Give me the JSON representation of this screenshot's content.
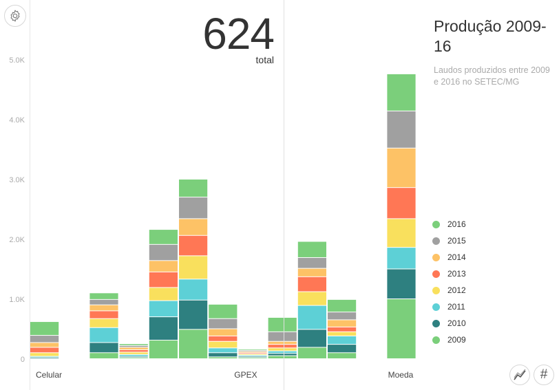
{
  "total": {
    "value": "624",
    "label": "total"
  },
  "title": "Produção 2009-16",
  "subtitle": "Laudos produzidos entre 2009 e 2016 no SETEC/MG",
  "controls": {
    "settings_icon": "gear-icon",
    "line_icon": "line-chart-icon",
    "number_icon": "hash-icon",
    "number_label": "#"
  },
  "chart_data": {
    "type": "bar",
    "stacked": true,
    "grid": false,
    "legend_position": "right",
    "ylim": [
      0,
      5000
    ],
    "y_ticks": [
      {
        "value": 0,
        "label": "0"
      },
      {
        "value": 1000,
        "label": "1.0K"
      },
      {
        "value": 2000,
        "label": "2.0K"
      },
      {
        "value": 3000,
        "label": "3.0K"
      },
      {
        "value": 4000,
        "label": "4.0K"
      },
      {
        "value": 5000,
        "label": "5.0K"
      }
    ],
    "categories": [
      "Celular",
      "",
      "",
      "",
      "",
      "",
      "",
      "GPEX",
      "",
      "",
      "Moeda"
    ],
    "category_slots": [
      0,
      2,
      3,
      4,
      5,
      6,
      7,
      8,
      9,
      10,
      12
    ],
    "group_labels": [
      {
        "label": "Celular",
        "align_slot": 0,
        "anchor": "start"
      },
      {
        "label": "GPEX",
        "align_slot": 7,
        "anchor": "end"
      },
      {
        "label": "Moeda",
        "align_slot": 12,
        "anchor": "middle"
      }
    ],
    "legend_order": [
      "2016",
      "2015",
      "2014",
      "2013",
      "2012",
      "2011",
      "2010",
      "2009"
    ],
    "series": [
      {
        "name": "2009",
        "color": "#7bcf7b",
        "values": [
          0,
          100,
          20,
          310,
          490,
          30,
          20,
          50,
          190,
          100,
          1000
        ]
      },
      {
        "name": "2010",
        "color": "#2e8080",
        "values": [
          20,
          170,
          20,
          390,
          490,
          70,
          20,
          40,
          300,
          140,
          500
        ]
      },
      {
        "name": "2011",
        "color": "#5dd0d6",
        "values": [
          20,
          250,
          30,
          270,
          350,
          80,
          20,
          40,
          400,
          140,
          360
        ]
      },
      {
        "name": "2012",
        "color": "#f9e05d",
        "values": [
          60,
          150,
          40,
          220,
          390,
          110,
          20,
          50,
          230,
          70,
          480
        ]
      },
      {
        "name": "2013",
        "color": "#ff7755",
        "values": [
          90,
          130,
          40,
          260,
          340,
          90,
          20,
          60,
          250,
          80,
          520
        ]
      },
      {
        "name": "2014",
        "color": "#fdc266",
        "values": [
          80,
          100,
          40,
          190,
          280,
          120,
          20,
          50,
          140,
          120,
          660
        ]
      },
      {
        "name": "2015",
        "color": "#a0a0a0",
        "values": [
          120,
          90,
          30,
          270,
          360,
          170,
          20,
          160,
          180,
          130,
          620
        ]
      },
      {
        "name": "2016",
        "color": "#7bcf7b",
        "values": [
          230,
          110,
          30,
          250,
          300,
          240,
          20,
          240,
          270,
          210,
          620
        ]
      }
    ]
  }
}
